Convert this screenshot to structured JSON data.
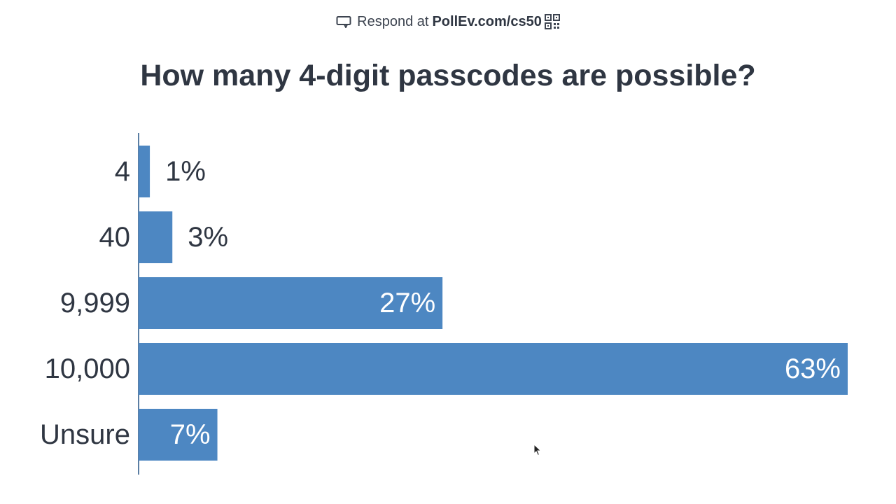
{
  "header": {
    "respond_text": "Respond at",
    "respond_url": "PollEv.com/cs50"
  },
  "question": "How many 4-digit passcodes are possible?",
  "colors": {
    "bar": "#4d87c2",
    "axis": "#5b7ea3",
    "text": "#2f3642",
    "inside_label": "#ffffff"
  },
  "icons": {
    "respond": "speech-bubble-icon",
    "qr": "qr-code-icon",
    "cursor": "mouse-pointer-icon"
  },
  "chart_data": {
    "type": "bar",
    "orientation": "horizontal",
    "title": "How many 4-digit passcodes are possible?",
    "categories": [
      "4",
      "40",
      "9,999",
      "10,000",
      "Unsure"
    ],
    "values": [
      1,
      3,
      27,
      63,
      7
    ],
    "value_labels": [
      "1%",
      "3%",
      "27%",
      "63%",
      "7%"
    ],
    "unit": "%",
    "xlim": [
      0,
      63
    ],
    "grid": false,
    "legend": "none"
  }
}
